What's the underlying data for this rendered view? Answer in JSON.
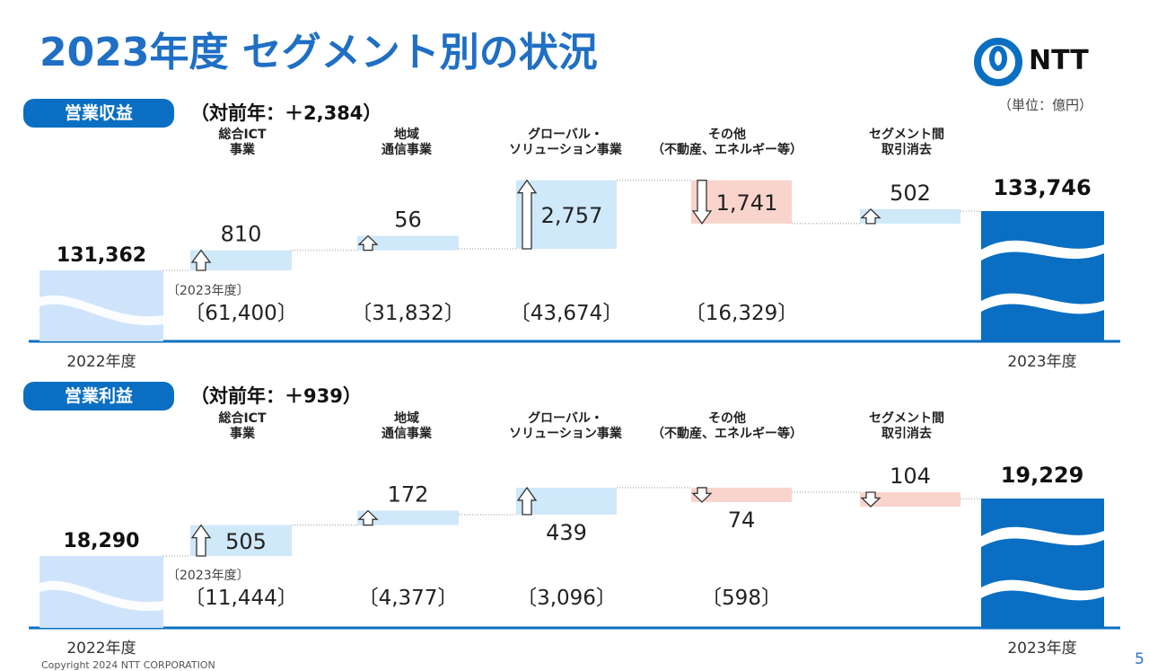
{
  "title": "2023年度 セグメント別の状況",
  "logo_text": "NTT",
  "unit": "（単位：億円）",
  "copyright": "Copyright 2024 NTT CORPORATION",
  "page_number": "5",
  "segment_labels": [
    [
      "総合ICT",
      "事業"
    ],
    [
      "地域",
      "通信事業"
    ],
    [
      "グローバル・",
      "ソリューション事業"
    ],
    [
      "その他",
      "（不動産、エネルギー等）"
    ],
    [
      "セグメント間",
      "取引消去"
    ]
  ],
  "colors": {
    "accent": "#1f6fc4",
    "increase": "#cfe8fa",
    "decrease": "#f9d4cc",
    "total": "#0a6fc2",
    "prior": "#cfe3fb"
  },
  "chart_data": [
    {
      "type": "waterfall",
      "title": "営業収益",
      "yoy_label": "（対前年：＋2,384）",
      "start": {
        "label": "2022年度",
        "value": 131362,
        "value_label": "131,362"
      },
      "end": {
        "label": "2023年度",
        "value": 133746,
        "value_label": "133,746"
      },
      "steps": [
        {
          "delta": 810,
          "label": "810",
          "direction": "up",
          "segment_total": "〔61,400〕",
          "note": "〔2023年度〕"
        },
        {
          "delta": 56,
          "label": "56",
          "direction": "up",
          "segment_total": "〔31,832〕"
        },
        {
          "delta": 2757,
          "label": "2,757",
          "direction": "up",
          "segment_total": "〔43,674〕"
        },
        {
          "delta": -1741,
          "label": "1,741",
          "direction": "down",
          "segment_total": "〔16,329〕"
        },
        {
          "delta": 502,
          "label": "502",
          "direction": "up",
          "segment_total": ""
        }
      ]
    },
    {
      "type": "waterfall",
      "title": "営業利益",
      "yoy_label": "（対前年：＋939）",
      "start": {
        "label": "2022年度",
        "value": 18290,
        "value_label": "18,290"
      },
      "end": {
        "label": "2023年度",
        "value": 19229,
        "value_label": "19,229"
      },
      "steps": [
        {
          "delta": 505,
          "label": "505",
          "direction": "up",
          "segment_total": "〔11,444〕",
          "note": "〔2023年度〕"
        },
        {
          "delta": 172,
          "label": "172",
          "direction": "up",
          "segment_total": "〔4,377〕"
        },
        {
          "delta": 439,
          "label": "439",
          "direction": "up",
          "segment_total": "〔3,096〕"
        },
        {
          "delta": -74,
          "label": "74",
          "direction": "down",
          "segment_total": "〔598〕"
        },
        {
          "delta": -104,
          "label": "104",
          "direction": "down",
          "segment_total": ""
        }
      ]
    }
  ]
}
